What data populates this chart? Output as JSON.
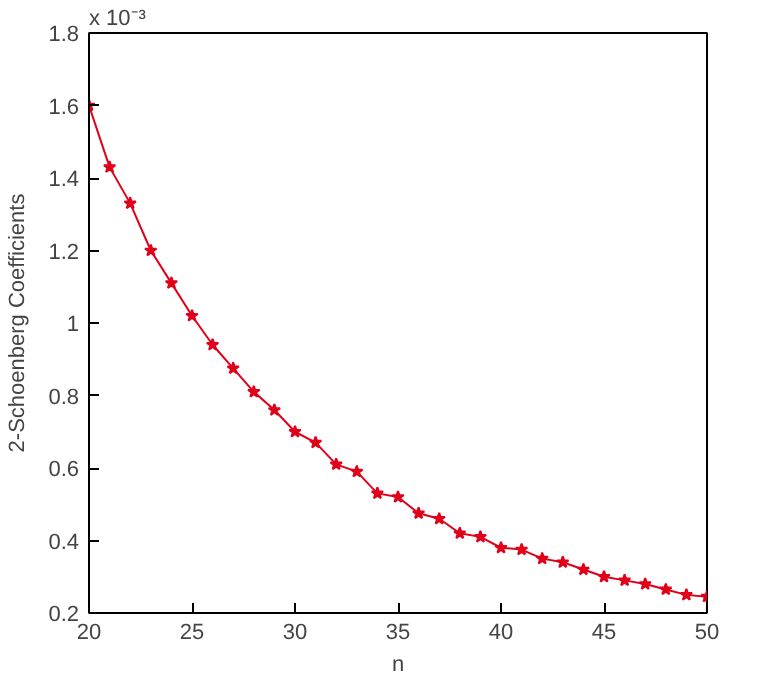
{
  "chart_data": {
    "type": "line",
    "xlabel": "n",
    "ylabel": "2-Schoenberg Coefficients",
    "annotations": [
      "x 10⁻³"
    ],
    "x": [
      20,
      21,
      22,
      23,
      24,
      25,
      26,
      27,
      28,
      29,
      30,
      31,
      32,
      33,
      34,
      35,
      36,
      37,
      38,
      39,
      40,
      41,
      42,
      43,
      44,
      45,
      46,
      47,
      48,
      49,
      50
    ],
    "series": [
      {
        "color": "#e0001a",
        "values": [
          1.6,
          1.43,
          1.33,
          1.2,
          1.11,
          1.02,
          0.94,
          0.875,
          0.81,
          0.76,
          0.7,
          0.67,
          0.61,
          0.59,
          0.53,
          0.52,
          0.475,
          0.46,
          0.42,
          0.41,
          0.38,
          0.375,
          0.35,
          0.34,
          0.32,
          0.3,
          0.29,
          0.28,
          0.265,
          0.25,
          0.245
        ]
      }
    ],
    "xlim": [
      20,
      50
    ],
    "ylim": [
      0.2,
      1.8
    ],
    "xticks": [
      20,
      25,
      30,
      35,
      40,
      45,
      50
    ],
    "yticks": [
      0.2,
      0.4,
      0.6,
      0.8,
      1,
      1.2,
      1.4,
      1.6,
      1.8
    ],
    "marker": "star",
    "line_style": "solid",
    "grid": false
  }
}
